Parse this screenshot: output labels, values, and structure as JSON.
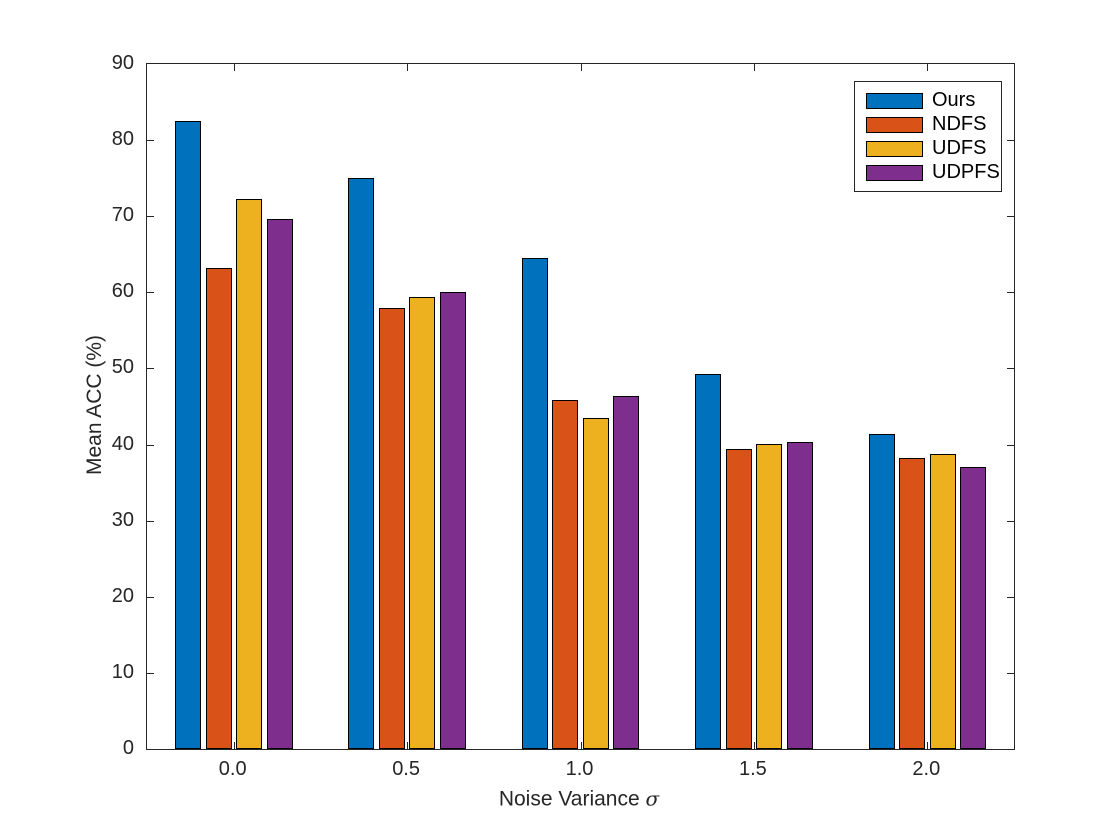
{
  "chart_data": {
    "type": "bar",
    "title": "",
    "xlabel": "Noise Variance σ",
    "xlabel_text": "Noise Variance",
    "xlabel_symbol": "σ",
    "ylabel": "Mean ACC (%)",
    "categories": [
      "0.0",
      "0.5",
      "1.0",
      "1.5",
      "2.0"
    ],
    "series": [
      {
        "name": "Ours",
        "color": "#0072BD",
        "values": [
          82.5,
          75.0,
          64.5,
          49.3,
          41.4
        ]
      },
      {
        "name": "NDFS",
        "color": "#D95319",
        "values": [
          63.2,
          57.9,
          45.9,
          39.4,
          38.2
        ]
      },
      {
        "name": "UDFS",
        "color": "#EDB120",
        "values": [
          72.3,
          59.4,
          43.5,
          40.1,
          38.8
        ]
      },
      {
        "name": "UDPFS",
        "color": "#7E2F8E",
        "values": [
          69.6,
          60.0,
          46.4,
          40.4,
          37.0
        ]
      }
    ],
    "ylim": [
      0,
      90
    ],
    "ytick_step": 10,
    "yticks": [
      "0",
      "10",
      "20",
      "30",
      "40",
      "50",
      "60",
      "70",
      "80",
      "90"
    ],
    "legend_position": "top-right",
    "grid": false,
    "bar_edge_color": "#000000",
    "axis_color": "#262626",
    "background_color": "#ffffff"
  }
}
